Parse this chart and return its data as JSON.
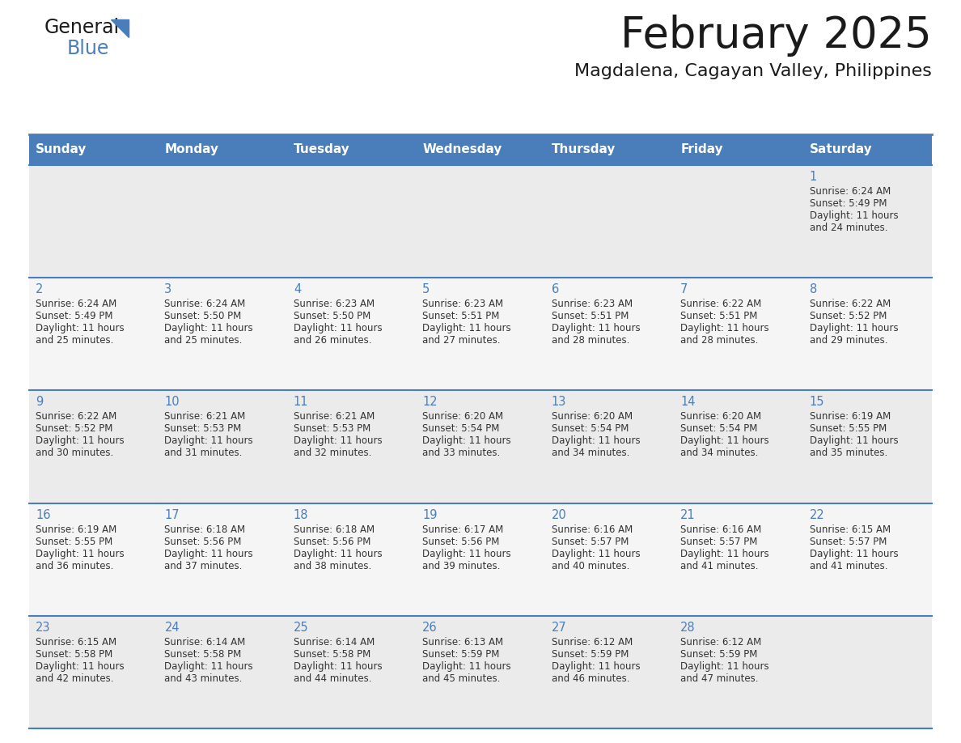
{
  "title": "February 2025",
  "subtitle": "Magdalena, Cagayan Valley, Philippines",
  "header_color": "#4a7ebb",
  "header_text_color": "#ffffff",
  "day_names": [
    "Sunday",
    "Monday",
    "Tuesday",
    "Wednesday",
    "Thursday",
    "Friday",
    "Saturday"
  ],
  "background_color": "#ffffff",
  "cell_bg_row0": "#ebebeb",
  "cell_bg_row1": "#f5f5f5",
  "cell_bg_row2": "#ebebeb",
  "cell_bg_row3": "#f5f5f5",
  "cell_bg_row4": "#ebebeb",
  "border_color": "#4a7ebb",
  "day_num_color": "#4a7ebb",
  "text_color": "#333333",
  "days": [
    {
      "day": 1,
      "col": 6,
      "row": 0,
      "sunrise": "6:24 AM",
      "sunset": "5:49 PM",
      "daylight_h": "Daylight: 11 hours",
      "daylight_m": "and 24 minutes."
    },
    {
      "day": 2,
      "col": 0,
      "row": 1,
      "sunrise": "6:24 AM",
      "sunset": "5:49 PM",
      "daylight_h": "Daylight: 11 hours",
      "daylight_m": "and 25 minutes."
    },
    {
      "day": 3,
      "col": 1,
      "row": 1,
      "sunrise": "6:24 AM",
      "sunset": "5:50 PM",
      "daylight_h": "Daylight: 11 hours",
      "daylight_m": "and 25 minutes."
    },
    {
      "day": 4,
      "col": 2,
      "row": 1,
      "sunrise": "6:23 AM",
      "sunset": "5:50 PM",
      "daylight_h": "Daylight: 11 hours",
      "daylight_m": "and 26 minutes."
    },
    {
      "day": 5,
      "col": 3,
      "row": 1,
      "sunrise": "6:23 AM",
      "sunset": "5:51 PM",
      "daylight_h": "Daylight: 11 hours",
      "daylight_m": "and 27 minutes."
    },
    {
      "day": 6,
      "col": 4,
      "row": 1,
      "sunrise": "6:23 AM",
      "sunset": "5:51 PM",
      "daylight_h": "Daylight: 11 hours",
      "daylight_m": "and 28 minutes."
    },
    {
      "day": 7,
      "col": 5,
      "row": 1,
      "sunrise": "6:22 AM",
      "sunset": "5:51 PM",
      "daylight_h": "Daylight: 11 hours",
      "daylight_m": "and 28 minutes."
    },
    {
      "day": 8,
      "col": 6,
      "row": 1,
      "sunrise": "6:22 AM",
      "sunset": "5:52 PM",
      "daylight_h": "Daylight: 11 hours",
      "daylight_m": "and 29 minutes."
    },
    {
      "day": 9,
      "col": 0,
      "row": 2,
      "sunrise": "6:22 AM",
      "sunset": "5:52 PM",
      "daylight_h": "Daylight: 11 hours",
      "daylight_m": "and 30 minutes."
    },
    {
      "day": 10,
      "col": 1,
      "row": 2,
      "sunrise": "6:21 AM",
      "sunset": "5:53 PM",
      "daylight_h": "Daylight: 11 hours",
      "daylight_m": "and 31 minutes."
    },
    {
      "day": 11,
      "col": 2,
      "row": 2,
      "sunrise": "6:21 AM",
      "sunset": "5:53 PM",
      "daylight_h": "Daylight: 11 hours",
      "daylight_m": "and 32 minutes."
    },
    {
      "day": 12,
      "col": 3,
      "row": 2,
      "sunrise": "6:20 AM",
      "sunset": "5:54 PM",
      "daylight_h": "Daylight: 11 hours",
      "daylight_m": "and 33 minutes."
    },
    {
      "day": 13,
      "col": 4,
      "row": 2,
      "sunrise": "6:20 AM",
      "sunset": "5:54 PM",
      "daylight_h": "Daylight: 11 hours",
      "daylight_m": "and 34 minutes."
    },
    {
      "day": 14,
      "col": 5,
      "row": 2,
      "sunrise": "6:20 AM",
      "sunset": "5:54 PM",
      "daylight_h": "Daylight: 11 hours",
      "daylight_m": "and 34 minutes."
    },
    {
      "day": 15,
      "col": 6,
      "row": 2,
      "sunrise": "6:19 AM",
      "sunset": "5:55 PM",
      "daylight_h": "Daylight: 11 hours",
      "daylight_m": "and 35 minutes."
    },
    {
      "day": 16,
      "col": 0,
      "row": 3,
      "sunrise": "6:19 AM",
      "sunset": "5:55 PM",
      "daylight_h": "Daylight: 11 hours",
      "daylight_m": "and 36 minutes."
    },
    {
      "day": 17,
      "col": 1,
      "row": 3,
      "sunrise": "6:18 AM",
      "sunset": "5:56 PM",
      "daylight_h": "Daylight: 11 hours",
      "daylight_m": "and 37 minutes."
    },
    {
      "day": 18,
      "col": 2,
      "row": 3,
      "sunrise": "6:18 AM",
      "sunset": "5:56 PM",
      "daylight_h": "Daylight: 11 hours",
      "daylight_m": "and 38 minutes."
    },
    {
      "day": 19,
      "col": 3,
      "row": 3,
      "sunrise": "6:17 AM",
      "sunset": "5:56 PM",
      "daylight_h": "Daylight: 11 hours",
      "daylight_m": "and 39 minutes."
    },
    {
      "day": 20,
      "col": 4,
      "row": 3,
      "sunrise": "6:16 AM",
      "sunset": "5:57 PM",
      "daylight_h": "Daylight: 11 hours",
      "daylight_m": "and 40 minutes."
    },
    {
      "day": 21,
      "col": 5,
      "row": 3,
      "sunrise": "6:16 AM",
      "sunset": "5:57 PM",
      "daylight_h": "Daylight: 11 hours",
      "daylight_m": "and 41 minutes."
    },
    {
      "day": 22,
      "col": 6,
      "row": 3,
      "sunrise": "6:15 AM",
      "sunset": "5:57 PM",
      "daylight_h": "Daylight: 11 hours",
      "daylight_m": "and 41 minutes."
    },
    {
      "day": 23,
      "col": 0,
      "row": 4,
      "sunrise": "6:15 AM",
      "sunset": "5:58 PM",
      "daylight_h": "Daylight: 11 hours",
      "daylight_m": "and 42 minutes."
    },
    {
      "day": 24,
      "col": 1,
      "row": 4,
      "sunrise": "6:14 AM",
      "sunset": "5:58 PM",
      "daylight_h": "Daylight: 11 hours",
      "daylight_m": "and 43 minutes."
    },
    {
      "day": 25,
      "col": 2,
      "row": 4,
      "sunrise": "6:14 AM",
      "sunset": "5:58 PM",
      "daylight_h": "Daylight: 11 hours",
      "daylight_m": "and 44 minutes."
    },
    {
      "day": 26,
      "col": 3,
      "row": 4,
      "sunrise": "6:13 AM",
      "sunset": "5:59 PM",
      "daylight_h": "Daylight: 11 hours",
      "daylight_m": "and 45 minutes."
    },
    {
      "day": 27,
      "col": 4,
      "row": 4,
      "sunrise": "6:12 AM",
      "sunset": "5:59 PM",
      "daylight_h": "Daylight: 11 hours",
      "daylight_m": "and 46 minutes."
    },
    {
      "day": 28,
      "col": 5,
      "row": 4,
      "sunrise": "6:12 AM",
      "sunset": "5:59 PM",
      "daylight_h": "Daylight: 11 hours",
      "daylight_m": "and 47 minutes."
    }
  ],
  "num_rows": 5,
  "num_cols": 7,
  "fig_width": 11.88,
  "fig_height": 9.18,
  "dpi": 100
}
